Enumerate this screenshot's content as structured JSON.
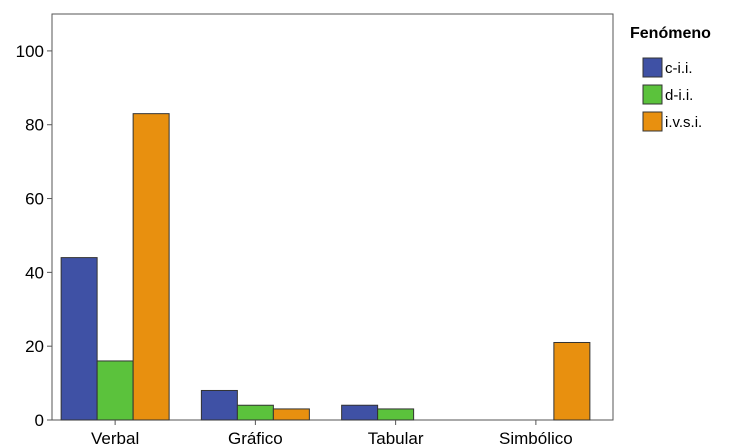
{
  "chart_data": {
    "type": "bar",
    "categories": [
      "Verbal",
      "Gráfico",
      "Tabular",
      "Simbólico"
    ],
    "series": [
      {
        "name": "c-i.i.",
        "color": "#3f51a5",
        "values": [
          44,
          8,
          4,
          0
        ]
      },
      {
        "name": "d-i.i.",
        "color": "#5bc23c",
        "values": [
          16,
          4,
          3,
          0
        ]
      },
      {
        "name": "i.v.s.i.",
        "color": "#e8900f",
        "values": [
          83,
          3,
          0,
          21
        ]
      }
    ],
    "title": "",
    "xlabel": "",
    "ylabel": "",
    "ylim": [
      0,
      110
    ],
    "yticks": [
      0,
      20,
      40,
      60,
      80,
      100
    ],
    "grid": false,
    "legend": {
      "title": "Fenómeno",
      "placement": "right"
    }
  }
}
